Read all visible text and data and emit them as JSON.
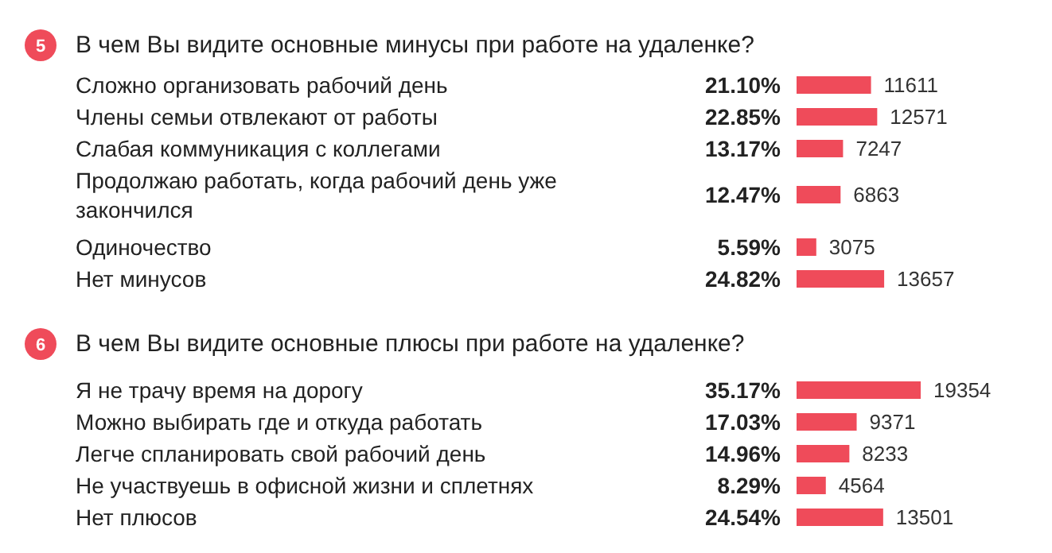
{
  "chart_data": [
    {
      "type": "bar",
      "orientation": "horizontal",
      "title": "В чем Вы видите основные минусы при работе на удаленке?",
      "color": "#ef4b5a",
      "categories": [
        "Сложно организовать рабочий день",
        "Члены семьи отвлекают от работы",
        "Слабая коммуникация с коллегами",
        "Продолжаю работать, когда рабочий день уже закончился",
        "Одиночество",
        "Нет минусов"
      ],
      "values": [
        21.1,
        22.85,
        13.17,
        12.47,
        5.59,
        24.82
      ],
      "value_labels": [
        "21.10%",
        "22.85%",
        "13.17%",
        "12.47%",
        "5.59%",
        "24.82%"
      ],
      "annotations": [
        "5",
        {
          "text": "11611",
          "x": 21.1,
          "y": "Сложно организовать рабочий день"
        },
        {
          "text": "12571",
          "x": 22.85,
          "y": "Члены семьи отвлекают от работы"
        },
        {
          "text": "7247",
          "x": 13.17,
          "y": "Слабая коммуникация с коллегами"
        },
        {
          "text": "6863",
          "x": 12.47,
          "y": "Продолжаю работать, когда рабочий день уже закончился"
        },
        {
          "text": "3075",
          "x": 5.59,
          "y": "Одиночество"
        },
        {
          "text": "13657",
          "x": 24.82,
          "y": "Нет минусов"
        }
      ]
    },
    {
      "type": "bar",
      "orientation": "horizontal",
      "title": "В чем Вы видите основные плюсы при работе на удаленке?",
      "color": "#ef4b5a",
      "categories": [
        "Я не трачу время на дорогу",
        "Можно выбирать где и откуда работать",
        "Легче спланировать свой рабочий день",
        "Не участвуешь в офисной жизни и сплетнях",
        "Нет плюсов"
      ],
      "values": [
        35.17,
        17.03,
        14.96,
        8.29,
        24.54
      ],
      "value_labels": [
        "35.17%",
        "17.03%",
        "14.96%",
        "8.29%",
        "24.54%"
      ],
      "annotations": [
        "6",
        {
          "text": "19354",
          "x": 35.17,
          "y": "Я не трачу время на дорогу"
        },
        {
          "text": "9371",
          "x": 17.03,
          "y": "Можно выбирать где и откуда работать"
        },
        {
          "text": "8233",
          "x": 14.96,
          "y": "Легче спланировать свой рабочий день"
        },
        {
          "text": "4564",
          "x": 8.29,
          "y": "Не участвуешь в офисной жизни и сплетнях"
        },
        {
          "text": "13501",
          "x": 24.54,
          "y": "Нет плюсов"
        }
      ]
    }
  ]
}
